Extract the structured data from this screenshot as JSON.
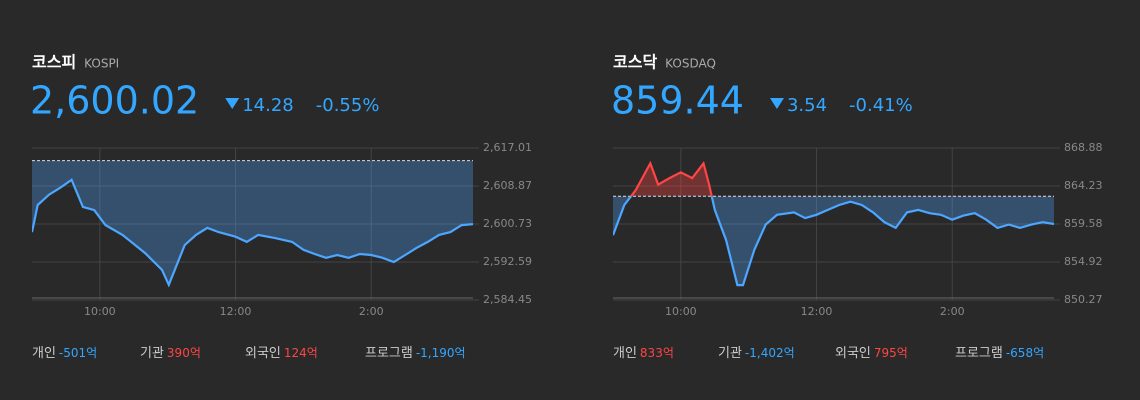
{
  "chart_data": [
    {
      "type": "line",
      "title": "코스피",
      "subtitle": "KOSPI",
      "value": "2,600.02",
      "change": "14.28",
      "change_percent": "-0.55%",
      "color": "#4da6ff",
      "up_color": "#ff4545",
      "reference": 2614.3,
      "x": [
        540,
        545,
        555,
        565,
        575,
        585,
        595,
        605,
        620,
        640,
        655,
        661,
        675,
        685,
        695,
        705,
        720,
        730,
        740,
        755,
        770,
        780,
        790,
        800,
        810,
        820,
        830,
        840,
        850,
        860,
        870,
        880,
        890,
        900,
        910,
        920,
        930
      ],
      "values": [
        2599.0,
        2604.8,
        2607.0,
        2608.5,
        2610.2,
        2604.4,
        2603.7,
        2600.5,
        2598.4,
        2594.5,
        2590.9,
        2587.7,
        2596.2,
        2598.4,
        2599.9,
        2599.0,
        2598.0,
        2596.9,
        2598.4,
        2597.7,
        2596.9,
        2595.2,
        2594.3,
        2593.5,
        2594.1,
        2593.5,
        2594.3,
        2594.1,
        2593.5,
        2592.6,
        2594.1,
        2595.6,
        2596.9,
        2598.4,
        2599.0,
        2600.5,
        2600.7
      ],
      "xlim": [
        540,
        930
      ],
      "xticks": [
        {
          "value": 600,
          "label": "10:00"
        },
        {
          "value": 720,
          "label": "12:00"
        },
        {
          "value": 840,
          "label": "2:00"
        }
      ],
      "ylim": [
        2584.45,
        2617.01
      ],
      "yticks": [
        {
          "value": 2584.45,
          "label": "2,584.45"
        },
        {
          "value": 2592.59,
          "label": "2,592.59"
        },
        {
          "value": 2600.73,
          "label": "2,600.73"
        },
        {
          "value": 2608.87,
          "label": "2,608.87"
        },
        {
          "value": 2617.01,
          "label": "2,617.01"
        }
      ],
      "grid": true,
      "investors": [
        {
          "name": "개인",
          "value": "-501억",
          "color": "#33a7ff"
        },
        {
          "name": "기관",
          "value": "390억",
          "color": "#ff4545"
        },
        {
          "name": "외국인",
          "value": "124억",
          "color": "#ff4545"
        },
        {
          "name": "프로그램",
          "value": "-1,190억",
          "color": "#33a7ff"
        }
      ]
    },
    {
      "type": "line",
      "title": "코스닥",
      "subtitle": "KOSDAQ",
      "value": "859.44",
      "change": "3.54",
      "change_percent": "-0.41%",
      "color": "#4da6ff",
      "up_color": "#ff4545",
      "reference": 862.98,
      "x": [
        540,
        550,
        560,
        573,
        580,
        590,
        600,
        610,
        620,
        625,
        630,
        640,
        650,
        655,
        665,
        675,
        685,
        700,
        710,
        720,
        730,
        740,
        750,
        760,
        770,
        780,
        790,
        800,
        810,
        820,
        830,
        840,
        850,
        860,
        870,
        880,
        890,
        900,
        910,
        920,
        930
      ],
      "values": [
        858.2,
        861.9,
        863.7,
        867.0,
        864.4,
        865.2,
        865.9,
        865.2,
        867.0,
        864.4,
        861.3,
        857.6,
        852.1,
        852.1,
        856.4,
        859.5,
        860.7,
        861.0,
        860.3,
        860.7,
        861.3,
        861.9,
        862.3,
        861.9,
        861.0,
        859.8,
        859.1,
        861.0,
        861.3,
        860.9,
        860.7,
        860.1,
        860.6,
        860.9,
        860.1,
        859.1,
        859.5,
        859.1,
        859.5,
        859.8,
        859.58
      ],
      "xlim": [
        540,
        930
      ],
      "xticks": [
        {
          "value": 600,
          "label": "10:00"
        },
        {
          "value": 720,
          "label": "12:00"
        },
        {
          "value": 840,
          "label": "2:00"
        }
      ],
      "ylim": [
        850.27,
        868.88
      ],
      "yticks": [
        850.27,
        854.92,
        859.58,
        864.23,
        868.88
      ],
      "grid": true,
      "investors": [
        {
          "name": "개인",
          "value": "833억",
          "color": "#ff4545"
        },
        {
          "name": "기관",
          "value": "-1,402억",
          "color": "#33a7ff"
        },
        {
          "name": "외국인",
          "value": "795억",
          "color": "#ff4545"
        },
        {
          "name": "프로그램",
          "value": "-658억",
          "color": "#33a7ff"
        }
      ]
    }
  ]
}
